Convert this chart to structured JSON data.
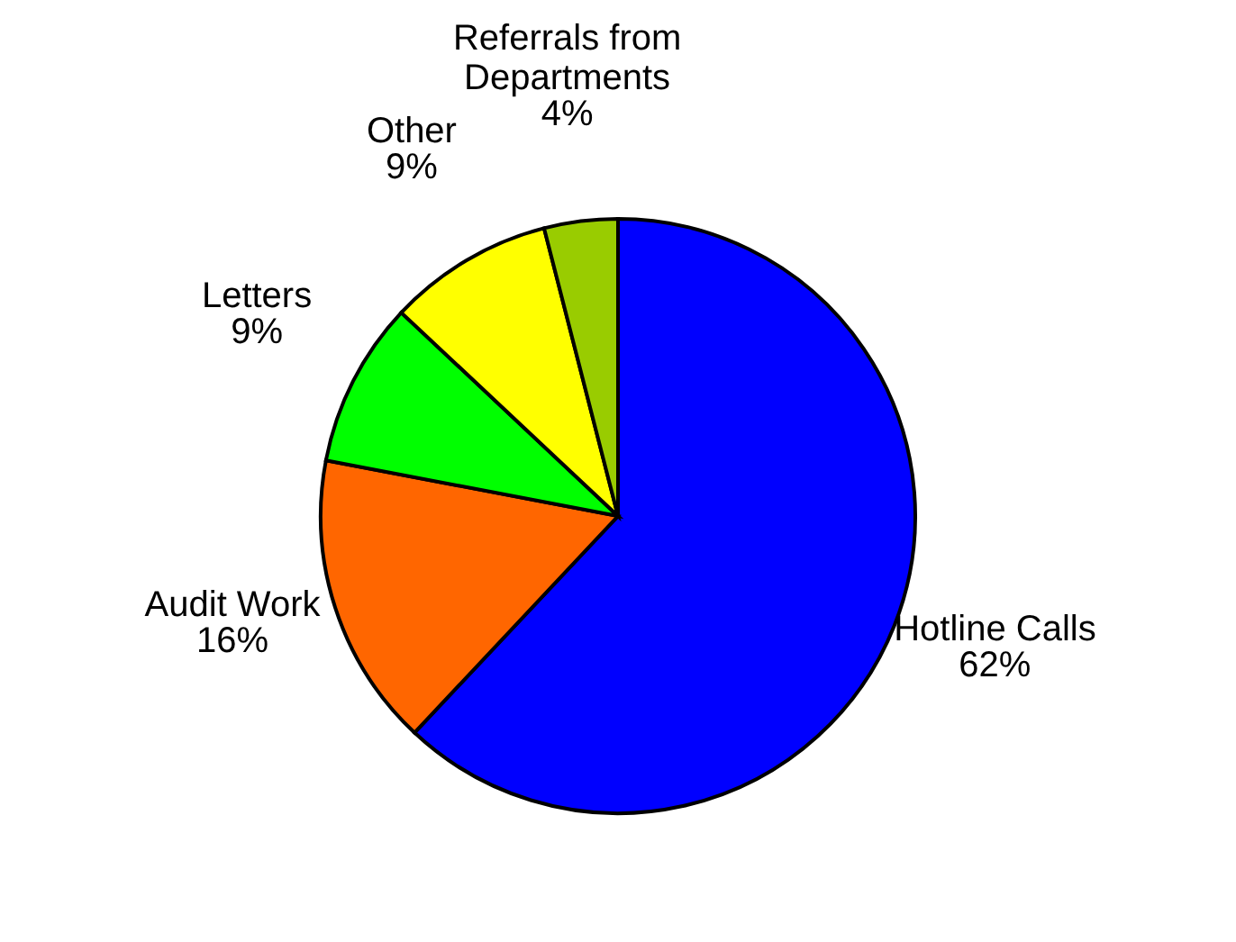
{
  "chart_data": {
    "type": "pie",
    "categories": [
      "Hotline Calls",
      "Audit Work",
      "Letters",
      "Other",
      "Referrals from Departments"
    ],
    "values": [
      62,
      16,
      9,
      9,
      4
    ],
    "colors": [
      "#0000ff",
      "#ff6600",
      "#00ff00",
      "#ffff00",
      "#99cc00"
    ],
    "value_labels": [
      "62%",
      "16%",
      "9%",
      "9%",
      "4%"
    ]
  }
}
